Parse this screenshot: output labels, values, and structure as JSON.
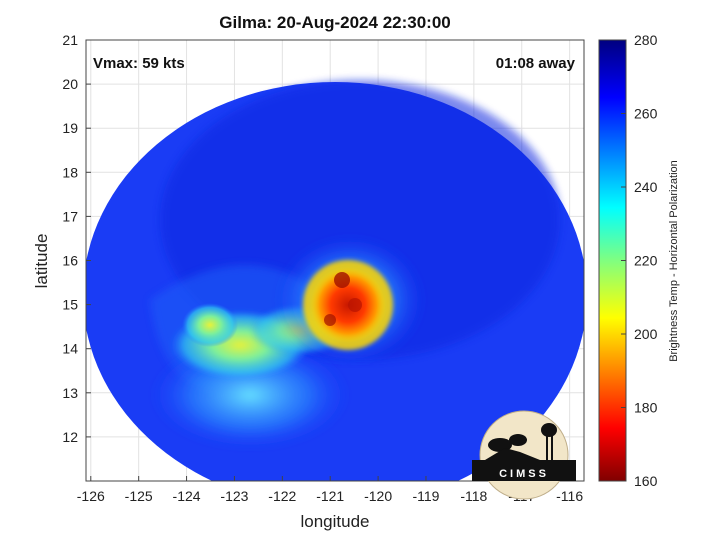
{
  "title": "Gilma: 20-Aug-2024 22:30:00",
  "xlabel": "longitude",
  "ylabel": "latitude",
  "colorbar_label": "Brightness Temp - Horizontal Polarization",
  "annotations": {
    "vmax": "Vmax: 59 kts",
    "time_away": "01:08 away"
  },
  "logo_text": "CIMSS",
  "x_ticks": [
    "-126",
    "-125",
    "-124",
    "-123",
    "-122",
    "-121",
    "-120",
    "-119",
    "-118",
    "-117",
    "-116"
  ],
  "y_ticks": [
    "21",
    "20",
    "19",
    "18",
    "17",
    "16",
    "15",
    "14",
    "13",
    "12"
  ],
  "colorbar_ticks": [
    "280",
    "260",
    "240",
    "220",
    "200",
    "180",
    "160"
  ],
  "chart_data": {
    "type": "heatmap",
    "title": "Gilma: 20-Aug-2024 22:30:00",
    "xlabel": "longitude",
    "ylabel": "latitude",
    "xlim": [
      -126.1,
      -115.7
    ],
    "ylim": [
      11.0,
      21.0
    ],
    "colorbar": {
      "label": "Brightness Temp - Horizontal Polarization",
      "range": [
        160,
        280
      ],
      "colormap": "jet"
    },
    "storm_center": {
      "lon": -120.9,
      "lat": 15.1
    },
    "features": [
      {
        "description_region": "cold core",
        "lon": -120.8,
        "lat": 15.1,
        "approx_temp": 185
      },
      {
        "description_region": "rain band",
        "lon": -123.5,
        "lat": 14.4,
        "approx_temp": 225
      }
    ],
    "background_temp": 262
  }
}
